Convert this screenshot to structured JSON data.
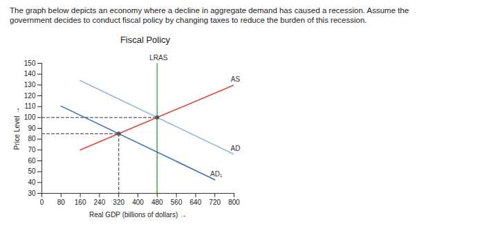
{
  "chart_data": {
    "type": "line",
    "subtitle": "The graph below depicts an economy where a decline in aggregate demand has caused a recession. Assume the government decides to conduct fiscal policy by changing taxes to reduce the burden of this recession.",
    "title": "Fiscal Policy",
    "x_label": "Real GDP (billions of dollars)",
    "y_label": "Price Level",
    "xlim": [
      0,
      800
    ],
    "xticks": [
      0,
      80,
      160,
      240,
      320,
      400,
      480,
      560,
      640,
      720,
      800
    ],
    "ylim": [
      30,
      150
    ],
    "yticks": [
      30,
      40,
      50,
      60,
      70,
      80,
      90,
      100,
      110,
      120,
      130,
      140,
      150
    ],
    "grid": false,
    "series": [
      {
        "name": "LRAS",
        "color": "#5cae5a",
        "x": [
          480,
          480
        ],
        "values": [
          30,
          150
        ]
      },
      {
        "name": "AS",
        "color": "#e0473f",
        "x": [
          160,
          800
        ],
        "values": [
          70,
          130
        ]
      },
      {
        "name": "AD",
        "color": "#8fb9dc",
        "x": [
          160,
          800
        ],
        "values": [
          134,
          66
        ]
      },
      {
        "name": "AD₁",
        "color": "#3a6fb5",
        "x": [
          80,
          720
        ],
        "values": [
          110.5,
          42.5
        ]
      }
    ],
    "equilibria": {
      "x": [
        480,
        320
      ],
      "values": [
        100,
        85
      ],
      "color": "#555555",
      "line_style": "dashed"
    }
  }
}
